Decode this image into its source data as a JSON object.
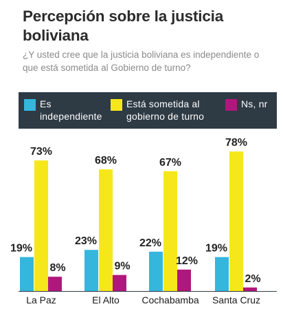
{
  "title": "Percepción sobre la justicia boliviana",
  "subtitle": "¿Y usted cree que la justicia boliviana es independiente o que está sometida al Gobierno de turno?",
  "colors": {
    "independiente": "#35b6dc",
    "sometida": "#f6e71b",
    "nsnr": "#b0177c",
    "legend_bg": "#2e3a44"
  },
  "legend": [
    {
      "label": "Es independiente",
      "color": "#35b6dc"
    },
    {
      "label": "Está sometida al gobierno de turno",
      "color": "#f6e71b"
    },
    {
      "label": "Ns, nr",
      "color": "#b0177c"
    }
  ],
  "chart_data": {
    "type": "bar",
    "categories": [
      "La Paz",
      "El Alto",
      "Cochabamba",
      "Santa Cruz"
    ],
    "series": [
      {
        "name": "Es independiente",
        "values": [
          19,
          23,
          22,
          19
        ],
        "labels": [
          "19%",
          "23%",
          "22%",
          "19%"
        ]
      },
      {
        "name": "Está sometida al gobierno de turno",
        "values": [
          73,
          68,
          67,
          78
        ],
        "labels": [
          "73%",
          "68%",
          "67%",
          "78%"
        ]
      },
      {
        "name": "Ns, nr",
        "values": [
          8,
          9,
          12,
          2
        ],
        "labels": [
          "8%",
          "9%",
          "12%",
          "2%"
        ]
      }
    ],
    "ylim": [
      0,
      100
    ],
    "unit": "%",
    "legend_position": "top",
    "grid": false
  }
}
